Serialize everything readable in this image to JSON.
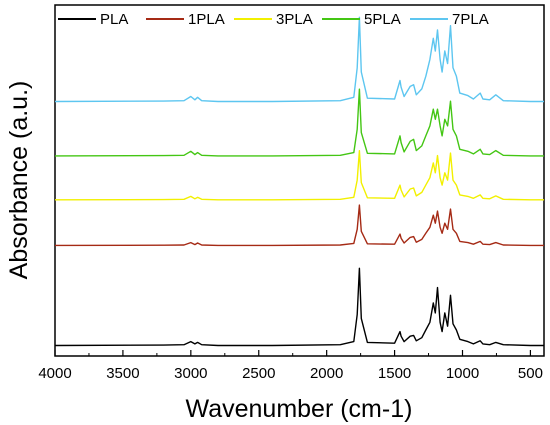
{
  "chart_data": {
    "type": "line",
    "title": "",
    "xlabel": "Wavenumber (cm-1)",
    "ylabel": "Absorbance (a.u.)",
    "xlim": [
      4000,
      400
    ],
    "x_reversed": true,
    "xticks": [
      4000,
      3500,
      3000,
      2500,
      2000,
      1500,
      1000,
      500
    ],
    "y_tick_labels": false,
    "grid": false,
    "legend_position": "top",
    "series": [
      {
        "name": "PLA",
        "color": "#000000",
        "baseline": 0.03,
        "scale": 0.22,
        "points": [
          [
            4000,
            0
          ],
          [
            3200,
            0.005
          ],
          [
            3050,
            0.01
          ],
          [
            3000,
            0.05
          ],
          [
            2970,
            0.02
          ],
          [
            2950,
            0.04
          ],
          [
            2920,
            0.01
          ],
          [
            2800,
            0
          ],
          [
            2400,
            0
          ],
          [
            1900,
            0.01
          ],
          [
            1800,
            0.05
          ],
          [
            1775,
            0.4
          ],
          [
            1759,
            1.0
          ],
          [
            1745,
            0.35
          ],
          [
            1700,
            0.04
          ],
          [
            1500,
            0.03
          ],
          [
            1460,
            0.18
          ],
          [
            1452,
            0.12
          ],
          [
            1430,
            0.05
          ],
          [
            1385,
            0.12
          ],
          [
            1360,
            0.13
          ],
          [
            1340,
            0.06
          ],
          [
            1300,
            0.1
          ],
          [
            1270,
            0.2
          ],
          [
            1240,
            0.3
          ],
          [
            1215,
            0.55
          ],
          [
            1200,
            0.42
          ],
          [
            1184,
            0.75
          ],
          [
            1165,
            0.3
          ],
          [
            1150,
            0.18
          ],
          [
            1130,
            0.42
          ],
          [
            1110,
            0.25
          ],
          [
            1088,
            0.65
          ],
          [
            1070,
            0.28
          ],
          [
            1045,
            0.2
          ],
          [
            1020,
            0.08
          ],
          [
            960,
            0.05
          ],
          [
            920,
            0.02
          ],
          [
            870,
            0.06
          ],
          [
            850,
            0.02
          ],
          [
            800,
            0.01
          ],
          [
            755,
            0.04
          ],
          [
            700,
            0.01
          ],
          [
            500,
            0
          ],
          [
            400,
            0
          ]
        ]
      },
      {
        "name": "1PLA",
        "color": "#a52a15",
        "baseline": 0.315,
        "scale": 0.115,
        "points": [
          [
            4000,
            0
          ],
          [
            3200,
            0.005
          ],
          [
            3050,
            0.01
          ],
          [
            3000,
            0.07
          ],
          [
            2970,
            0.02
          ],
          [
            2950,
            0.06
          ],
          [
            2920,
            0.01
          ],
          [
            2800,
            0
          ],
          [
            2400,
            0
          ],
          [
            1900,
            0.01
          ],
          [
            1800,
            0.05
          ],
          [
            1775,
            0.4
          ],
          [
            1759,
            1.0
          ],
          [
            1745,
            0.35
          ],
          [
            1700,
            0.04
          ],
          [
            1500,
            0.03
          ],
          [
            1460,
            0.28
          ],
          [
            1452,
            0.18
          ],
          [
            1430,
            0.06
          ],
          [
            1385,
            0.2
          ],
          [
            1360,
            0.22
          ],
          [
            1340,
            0.08
          ],
          [
            1300,
            0.15
          ],
          [
            1270,
            0.3
          ],
          [
            1240,
            0.45
          ],
          [
            1215,
            0.75
          ],
          [
            1200,
            0.55
          ],
          [
            1184,
            0.85
          ],
          [
            1165,
            0.45
          ],
          [
            1150,
            0.3
          ],
          [
            1130,
            0.55
          ],
          [
            1110,
            0.4
          ],
          [
            1088,
            0.9
          ],
          [
            1070,
            0.4
          ],
          [
            1045,
            0.3
          ],
          [
            1020,
            0.1
          ],
          [
            960,
            0.07
          ],
          [
            920,
            0.03
          ],
          [
            870,
            0.1
          ],
          [
            850,
            0.03
          ],
          [
            800,
            0.02
          ],
          [
            755,
            0.07
          ],
          [
            700,
            0.01
          ],
          [
            500,
            0
          ],
          [
            400,
            0
          ]
        ]
      },
      {
        "name": "3PLA",
        "color": "#f2f000",
        "baseline": 0.445,
        "scale": 0.14,
        "points": [
          [
            4000,
            0
          ],
          [
            3200,
            0.005
          ],
          [
            3050,
            0.01
          ],
          [
            3000,
            0.07
          ],
          [
            2970,
            0.02
          ],
          [
            2950,
            0.05
          ],
          [
            2920,
            0.01
          ],
          [
            2800,
            0
          ],
          [
            2400,
            0
          ],
          [
            1900,
            0.01
          ],
          [
            1800,
            0.05
          ],
          [
            1775,
            0.4
          ],
          [
            1759,
            1.0
          ],
          [
            1745,
            0.35
          ],
          [
            1700,
            0.04
          ],
          [
            1500,
            0.03
          ],
          [
            1460,
            0.3
          ],
          [
            1452,
            0.2
          ],
          [
            1430,
            0.06
          ],
          [
            1385,
            0.22
          ],
          [
            1360,
            0.24
          ],
          [
            1340,
            0.08
          ],
          [
            1300,
            0.15
          ],
          [
            1270,
            0.3
          ],
          [
            1240,
            0.45
          ],
          [
            1215,
            0.75
          ],
          [
            1200,
            0.55
          ],
          [
            1184,
            0.9
          ],
          [
            1165,
            0.45
          ],
          [
            1150,
            0.3
          ],
          [
            1130,
            0.55
          ],
          [
            1110,
            0.4
          ],
          [
            1088,
            0.95
          ],
          [
            1070,
            0.4
          ],
          [
            1045,
            0.3
          ],
          [
            1020,
            0.1
          ],
          [
            960,
            0.07
          ],
          [
            920,
            0.03
          ],
          [
            870,
            0.1
          ],
          [
            850,
            0.03
          ],
          [
            800,
            0.02
          ],
          [
            755,
            0.08
          ],
          [
            700,
            0.01
          ],
          [
            500,
            0
          ],
          [
            400,
            0
          ]
        ]
      },
      {
        "name": "5PLA",
        "color": "#44c614",
        "baseline": 0.57,
        "scale": 0.19,
        "points": [
          [
            4000,
            0
          ],
          [
            3200,
            0.005
          ],
          [
            3050,
            0.01
          ],
          [
            3000,
            0.07
          ],
          [
            2970,
            0.02
          ],
          [
            2950,
            0.05
          ],
          [
            2920,
            0.01
          ],
          [
            2800,
            0
          ],
          [
            2400,
            0
          ],
          [
            1900,
            0.01
          ],
          [
            1800,
            0.05
          ],
          [
            1775,
            0.4
          ],
          [
            1759,
            1.0
          ],
          [
            1745,
            0.35
          ],
          [
            1700,
            0.04
          ],
          [
            1500,
            0.03
          ],
          [
            1460,
            0.3
          ],
          [
            1452,
            0.2
          ],
          [
            1430,
            0.06
          ],
          [
            1385,
            0.22
          ],
          [
            1360,
            0.25
          ],
          [
            1340,
            0.08
          ],
          [
            1300,
            0.15
          ],
          [
            1270,
            0.3
          ],
          [
            1240,
            0.45
          ],
          [
            1215,
            0.7
          ],
          [
            1200,
            0.55
          ],
          [
            1184,
            0.7
          ],
          [
            1165,
            0.45
          ],
          [
            1150,
            0.3
          ],
          [
            1130,
            0.55
          ],
          [
            1110,
            0.45
          ],
          [
            1088,
            0.82
          ],
          [
            1070,
            0.4
          ],
          [
            1045,
            0.3
          ],
          [
            1020,
            0.1
          ],
          [
            960,
            0.07
          ],
          [
            920,
            0.03
          ],
          [
            870,
            0.1
          ],
          [
            850,
            0.03
          ],
          [
            800,
            0.02
          ],
          [
            755,
            0.08
          ],
          [
            700,
            0.01
          ],
          [
            500,
            0
          ],
          [
            400,
            0
          ]
        ]
      },
      {
        "name": "7PLA",
        "color": "#5dc6f0",
        "baseline": 0.725,
        "scale": 0.24,
        "points": [
          [
            4000,
            0
          ],
          [
            3200,
            0.005
          ],
          [
            3050,
            0.01
          ],
          [
            3000,
            0.06
          ],
          [
            2970,
            0.02
          ],
          [
            2950,
            0.05
          ],
          [
            2920,
            0.01
          ],
          [
            2800,
            0
          ],
          [
            2400,
            0
          ],
          [
            1900,
            0.01
          ],
          [
            1800,
            0.05
          ],
          [
            1775,
            0.4
          ],
          [
            1759,
            1.0
          ],
          [
            1745,
            0.35
          ],
          [
            1700,
            0.04
          ],
          [
            1500,
            0.03
          ],
          [
            1460,
            0.25
          ],
          [
            1452,
            0.17
          ],
          [
            1430,
            0.06
          ],
          [
            1385,
            0.18
          ],
          [
            1360,
            0.2
          ],
          [
            1340,
            0.08
          ],
          [
            1300,
            0.15
          ],
          [
            1270,
            0.3
          ],
          [
            1240,
            0.5
          ],
          [
            1215,
            0.75
          ],
          [
            1200,
            0.6
          ],
          [
            1184,
            0.85
          ],
          [
            1165,
            0.5
          ],
          [
            1150,
            0.35
          ],
          [
            1130,
            0.6
          ],
          [
            1110,
            0.45
          ],
          [
            1088,
            0.9
          ],
          [
            1070,
            0.4
          ],
          [
            1045,
            0.3
          ],
          [
            1020,
            0.1
          ],
          [
            960,
            0.07
          ],
          [
            920,
            0.03
          ],
          [
            870,
            0.1
          ],
          [
            850,
            0.03
          ],
          [
            800,
            0.02
          ],
          [
            755,
            0.08
          ],
          [
            700,
            0.01
          ],
          [
            500,
            0
          ],
          [
            400,
            0
          ]
        ]
      }
    ]
  }
}
